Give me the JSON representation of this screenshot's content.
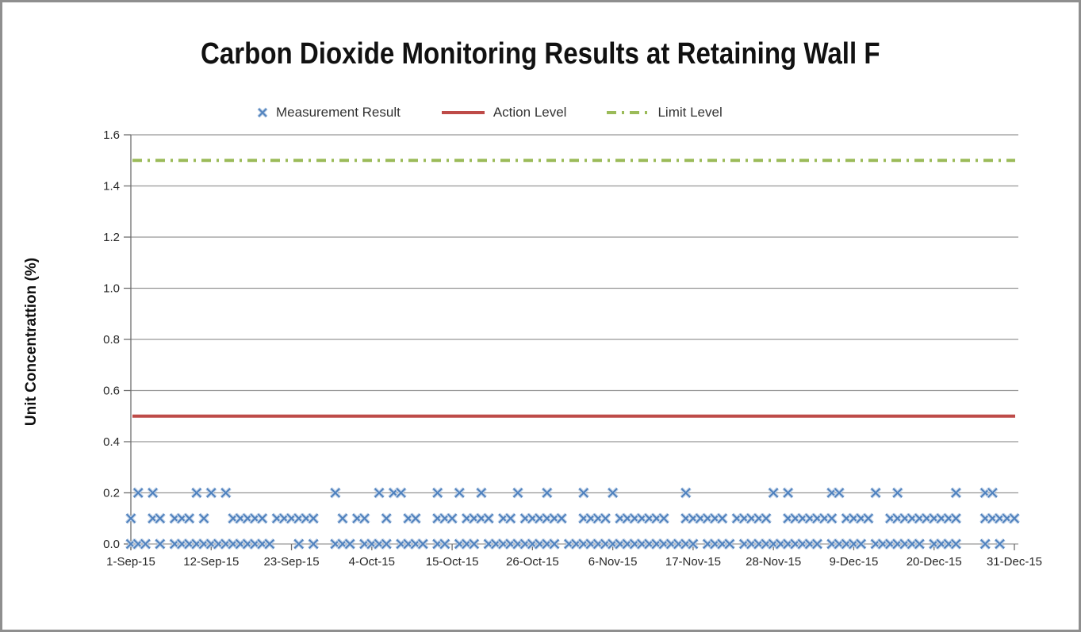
{
  "title": "Carbon Dioxide Monitoring Results at Retaining Wall F",
  "legend": {
    "items": [
      {
        "label": "Measurement Result",
        "type": "x-marker",
        "color": "#4F81BD"
      },
      {
        "label": "Action Level",
        "type": "solid-line",
        "color": "#BE4B48"
      },
      {
        "label": "Limit Level",
        "type": "dash-dot-line",
        "color": "#9BBB59"
      }
    ]
  },
  "y_axis": {
    "label": "Unit Concentrattion (%)",
    "tick_labels": [
      "0.0",
      "0.2",
      "0.4",
      "0.6",
      "0.8",
      "1.0",
      "1.2",
      "1.4",
      "1.6"
    ],
    "min": 0.0,
    "max": 1.6,
    "step": 0.2
  },
  "x_axis": {
    "tick_labels": [
      "1-Sep-15",
      "12-Sep-15",
      "23-Sep-15",
      "4-Oct-15",
      "15-Oct-15",
      "26-Oct-15",
      "6-Nov-15",
      "17-Nov-15",
      "28-Nov-15",
      "9-Dec-15",
      "20-Dec-15",
      "31-Dec-15"
    ],
    "tick_interval_days": 11,
    "span_days": 121
  },
  "chart_data": {
    "type": "scatter",
    "title": "Carbon Dioxide Monitoring Results at Retaining Wall F",
    "xlabel": "",
    "ylabel": "Unit Concentrattion (%)",
    "ylim": [
      0.0,
      1.6
    ],
    "y_tick_step": 0.2,
    "grid": "horizontal",
    "legend_position": "top",
    "x_unit": "days since 1-Sep-15",
    "x_tick_labels": [
      "1-Sep-15",
      "12-Sep-15",
      "23-Sep-15",
      "4-Oct-15",
      "15-Oct-15",
      "26-Oct-15",
      "6-Nov-15",
      "17-Nov-15",
      "28-Nov-15",
      "9-Dec-15",
      "20-Dec-15",
      "31-Dec-15"
    ],
    "x_tick_days": [
      0,
      11,
      22,
      33,
      44,
      55,
      66,
      77,
      88,
      99,
      110,
      121
    ],
    "series": [
      {
        "name": "Measurement Result",
        "type": "scatter",
        "marker": "x",
        "color": "#4F81BD",
        "halo_color": "#C7D7EB",
        "value_levels": [
          0.0,
          0.1,
          0.2
        ],
        "points_by_value": {
          "0.2": [
            1,
            3,
            9,
            11,
            13,
            28,
            34,
            36,
            37,
            42,
            45,
            48,
            53,
            57,
            62,
            66,
            76,
            88,
            90,
            96,
            97,
            102,
            105,
            113,
            117,
            118
          ],
          "0.1": [
            0,
            3,
            4,
            6,
            7,
            8,
            10,
            14,
            15,
            16,
            17,
            18,
            20,
            21,
            22,
            23,
            24,
            25,
            29,
            31,
            32,
            35,
            38,
            39,
            42,
            43,
            44,
            46,
            47,
            48,
            49,
            51,
            52,
            54,
            55,
            56,
            57,
            58,
            59,
            62,
            63,
            64,
            65,
            67,
            68,
            69,
            70,
            71,
            72,
            73,
            76,
            77,
            78,
            79,
            80,
            81,
            83,
            84,
            85,
            86,
            87,
            90,
            91,
            92,
            93,
            94,
            95,
            96,
            98,
            99,
            100,
            101,
            104,
            105,
            106,
            107,
            108,
            109,
            110,
            111,
            112,
            113,
            117,
            118,
            119,
            120,
            121
          ],
          "0.0": [
            0,
            1,
            2,
            4,
            6,
            7,
            8,
            9,
            10,
            11,
            12,
            13,
            14,
            15,
            16,
            17,
            18,
            19,
            23,
            25,
            28,
            29,
            30,
            32,
            33,
            34,
            35,
            37,
            38,
            39,
            40,
            42,
            43,
            45,
            46,
            47,
            49,
            50,
            51,
            52,
            53,
            54,
            55,
            56,
            57,
            58,
            60,
            61,
            62,
            63,
            64,
            65,
            66,
            67,
            68,
            69,
            70,
            71,
            72,
            73,
            74,
            75,
            76,
            77,
            79,
            80,
            81,
            82,
            84,
            85,
            86,
            87,
            88,
            89,
            90,
            91,
            92,
            93,
            94,
            96,
            97,
            98,
            99,
            100,
            102,
            103,
            104,
            105,
            106,
            107,
            108,
            110,
            111,
            112,
            113,
            117,
            119
          ]
        }
      },
      {
        "name": "Action Level",
        "type": "hline",
        "style": "solid",
        "color": "#BE4B48",
        "value": 0.5
      },
      {
        "name": "Limit Level",
        "type": "hline",
        "style": "dash-dot",
        "color": "#9BBB59",
        "value": 1.5
      }
    ]
  },
  "colors": {
    "grid": "#969696",
    "axis": "#6e6e6e",
    "text": "#262626",
    "frame": "#8f8f8f",
    "marker": "#4F81BD",
    "marker_halo": "#C7D7EB",
    "action_level": "#BE4B48",
    "limit_level": "#9BBB59"
  }
}
